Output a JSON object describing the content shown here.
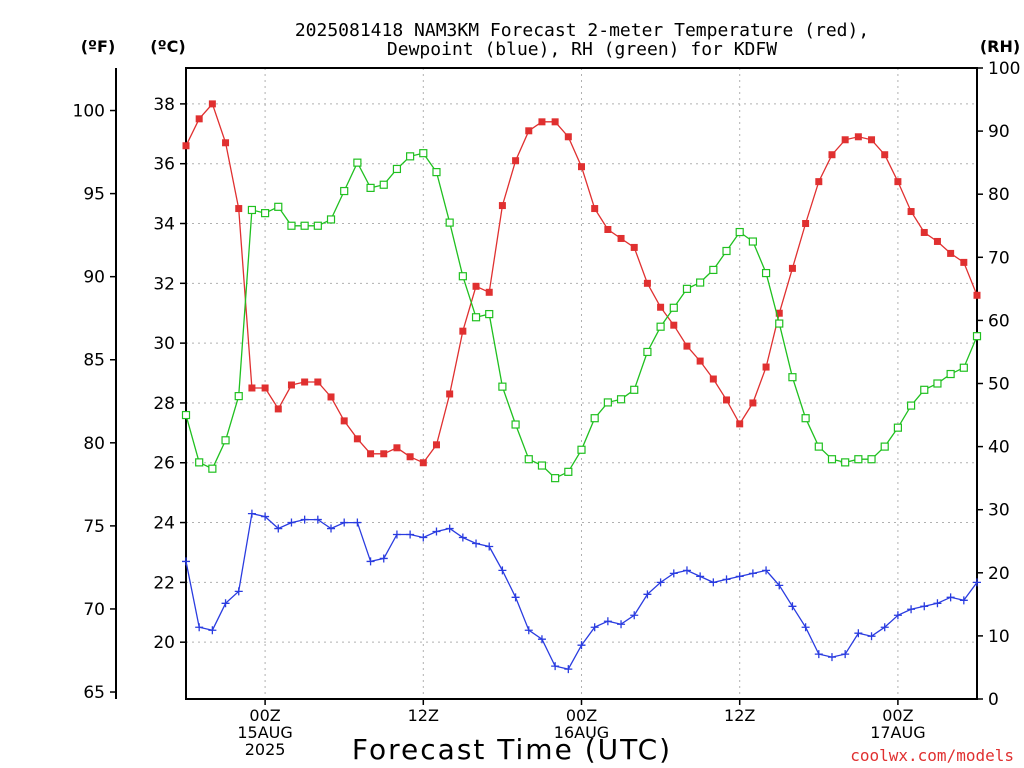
{
  "chart_data": {
    "type": "line",
    "title": [
      "2025081418 NAM3KM Forecast 2-meter Temperature (red),",
      "Dewpoint (blue), RH (green) for KDFW"
    ],
    "units": {
      "fahrenheit": "(ºF)",
      "celsius": "(ºC)",
      "rh": "(RH)"
    },
    "xlabel": "Forecast Time (UTC)",
    "credit": "coolwx.com/models",
    "x_hours_start": 18,
    "x_hours_end": 78,
    "x_ticks": [
      {
        "hour": 24,
        "lines": [
          "00Z",
          "15AUG",
          "2025"
        ]
      },
      {
        "hour": 36,
        "lines": [
          "12Z"
        ]
      },
      {
        "hour": 48,
        "lines": [
          "00Z",
          "16AUG"
        ]
      },
      {
        "hour": 60,
        "lines": [
          "12Z"
        ]
      },
      {
        "hour": 72,
        "lines": [
          "00Z",
          "17AUG"
        ]
      }
    ],
    "left_axis_f": {
      "ticks": [
        65,
        70,
        75,
        80,
        85,
        90,
        95,
        100
      ]
    },
    "left_axis_c": {
      "ticks": [
        20,
        22,
        24,
        26,
        28,
        30,
        32,
        34,
        36,
        38
      ]
    },
    "right_axis_rh": {
      "ticks": [
        0,
        10,
        20,
        30,
        40,
        50,
        60,
        70,
        80,
        90,
        100
      ],
      "ylim": [
        0,
        100
      ]
    },
    "ylim_c": [
      18.1,
      39.2
    ],
    "grid": true,
    "series": [
      {
        "key": "temperature",
        "color": "#e03030",
        "marker": "square-filled",
        "values": [
          36.6,
          37.5,
          38.0,
          36.7,
          34.5,
          28.5,
          28.5,
          27.8,
          28.6,
          28.7,
          28.7,
          28.2,
          27.4,
          26.8,
          26.3,
          26.3,
          26.5,
          26.2,
          26.0,
          26.6,
          28.3,
          30.4,
          31.9,
          31.7,
          34.6,
          36.1,
          37.1,
          37.4,
          37.4,
          36.9,
          35.9,
          34.5,
          33.8,
          33.5,
          33.2,
          32.0,
          31.2,
          30.6,
          29.9,
          29.4,
          28.8,
          28.1,
          27.3,
          28.0,
          29.2,
          31.0,
          32.5,
          34.0,
          35.4,
          36.3,
          36.8,
          36.9,
          36.8,
          36.3,
          35.4,
          34.4,
          33.7,
          33.4,
          33.0,
          32.7,
          31.6
        ]
      },
      {
        "key": "dewpoint",
        "color": "#2a3ce0",
        "marker": "plus",
        "values": [
          22.7,
          20.5,
          20.4,
          21.3,
          21.7,
          24.3,
          24.2,
          23.8,
          24.0,
          24.1,
          24.1,
          23.8,
          24.0,
          24.0,
          22.7,
          22.8,
          23.6,
          23.6,
          23.5,
          23.7,
          23.8,
          23.5,
          23.3,
          23.2,
          22.4,
          21.5,
          20.4,
          20.1,
          19.2,
          19.1,
          19.9,
          20.5,
          20.7,
          20.6,
          20.9,
          21.6,
          22.0,
          22.3,
          22.4,
          22.2,
          22.0,
          22.1,
          22.2,
          22.3,
          22.4,
          21.9,
          21.2,
          20.5,
          19.6,
          19.5,
          19.6,
          20.3,
          20.2,
          20.5,
          20.9,
          21.1,
          21.2,
          21.3,
          21.5,
          21.4,
          22.0
        ]
      },
      {
        "key": "rh",
        "color": "#20c020",
        "marker": "square-open",
        "values": [
          45,
          37.5,
          36.5,
          41,
          48,
          77.5,
          77,
          78,
          75,
          75,
          75,
          76,
          80.5,
          85,
          81,
          81.5,
          84,
          86,
          86.5,
          83.5,
          75.5,
          67,
          60.5,
          61,
          49.5,
          43.5,
          38,
          37,
          35,
          36,
          39.5,
          44.5,
          47,
          47.5,
          49,
          55,
          59,
          62,
          65,
          66,
          68,
          71,
          74,
          72.5,
          67.5,
          59.5,
          51,
          44.5,
          40,
          38,
          37.5,
          38,
          38,
          40,
          43,
          46.5,
          49,
          50,
          51.5,
          52.5,
          57.5
        ]
      }
    ]
  }
}
